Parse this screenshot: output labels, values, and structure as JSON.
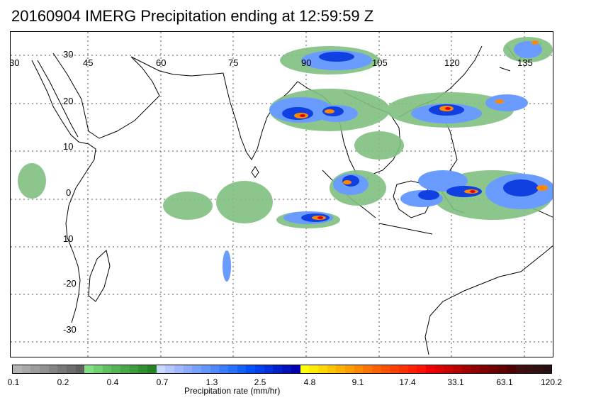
{
  "title": "20160904 IMERG Precipitation ending at 12:59:59 Z",
  "map": {
    "lon_labels": [
      "30",
      "45",
      "60",
      "75",
      "90",
      "105",
      "120",
      "135"
    ],
    "lat_labels": [
      "30",
      "20",
      "10",
      "0",
      "10",
      "-20",
      "-30"
    ],
    "gridlines": "dotted"
  },
  "colorbar": {
    "title": "Precipitation rate (mm/hr)",
    "tick_labels": [
      "0.1",
      "0.2",
      "0.4",
      "0.7",
      "1.3",
      "2.5",
      "4.8",
      "9.1",
      "17.4",
      "33.1",
      "63.1",
      "120.2"
    ],
    "colors": [
      "#b4b4b4",
      "#a8a8a8",
      "#9c9c9c",
      "#909090",
      "#848484",
      "#787878",
      "#6c6c6c",
      "#606060",
      "#80e080",
      "#70d070",
      "#60c060",
      "#54b454",
      "#48a848",
      "#3c9c3c",
      "#309030",
      "#248424",
      "#c8d8ff",
      "#b4c8ff",
      "#a0b8ff",
      "#8cacff",
      "#78a0ff",
      "#6494ff",
      "#5088ff",
      "#3c7cff",
      "#2870ff",
      "#1460ff",
      "#0050ff",
      "#0040f0",
      "#0030e0",
      "#0020d0",
      "#0010c0",
      "#0000b0",
      "#ffff00",
      "#ffec00",
      "#ffd800",
      "#ffc400",
      "#ffb000",
      "#ff9c00",
      "#ff8800",
      "#ff7400",
      "#ff6000",
      "#ff5000",
      "#ff4000",
      "#ff3000",
      "#ff2000",
      "#ff1000",
      "#f00000",
      "#e00000",
      "#cc0000",
      "#b80000",
      "#a40000",
      "#900000",
      "#800000",
      "#700000",
      "#600000",
      "#500000",
      "#401010",
      "#381010",
      "#301010",
      "#281010"
    ]
  }
}
